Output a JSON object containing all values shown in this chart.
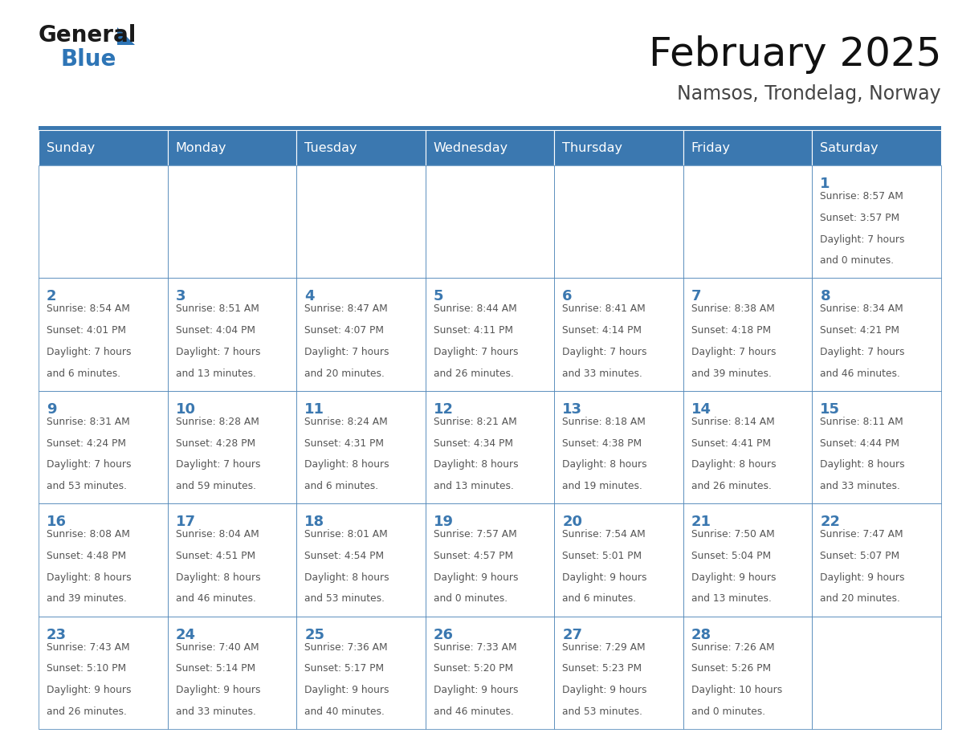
{
  "title": "February 2025",
  "subtitle": "Namsos, Trondelag, Norway",
  "header_bg": "#3b78b0",
  "header_text_color": "#ffffff",
  "border_color": "#3b78b0",
  "title_color": "#111111",
  "subtitle_color": "#444444",
  "day_number_color": "#3b78b0",
  "cell_text_color": "#555555",
  "logo_black": "#1a1a1a",
  "logo_blue": "#2e75b6",
  "day_headers": [
    "Sunday",
    "Monday",
    "Tuesday",
    "Wednesday",
    "Thursday",
    "Friday",
    "Saturday"
  ],
  "calendar": [
    [
      null,
      null,
      null,
      null,
      null,
      null,
      {
        "day": "1",
        "sunrise": "8:57 AM",
        "sunset": "3:57 PM",
        "daylight_l1": "7 hours",
        "daylight_l2": "and 0 minutes."
      }
    ],
    [
      {
        "day": "2",
        "sunrise": "8:54 AM",
        "sunset": "4:01 PM",
        "daylight_l1": "7 hours",
        "daylight_l2": "and 6 minutes."
      },
      {
        "day": "3",
        "sunrise": "8:51 AM",
        "sunset": "4:04 PM",
        "daylight_l1": "7 hours",
        "daylight_l2": "and 13 minutes."
      },
      {
        "day": "4",
        "sunrise": "8:47 AM",
        "sunset": "4:07 PM",
        "daylight_l1": "7 hours",
        "daylight_l2": "and 20 minutes."
      },
      {
        "day": "5",
        "sunrise": "8:44 AM",
        "sunset": "4:11 PM",
        "daylight_l1": "7 hours",
        "daylight_l2": "and 26 minutes."
      },
      {
        "day": "6",
        "sunrise": "8:41 AM",
        "sunset": "4:14 PM",
        "daylight_l1": "7 hours",
        "daylight_l2": "and 33 minutes."
      },
      {
        "day": "7",
        "sunrise": "8:38 AM",
        "sunset": "4:18 PM",
        "daylight_l1": "7 hours",
        "daylight_l2": "and 39 minutes."
      },
      {
        "day": "8",
        "sunrise": "8:34 AM",
        "sunset": "4:21 PM",
        "daylight_l1": "7 hours",
        "daylight_l2": "and 46 minutes."
      }
    ],
    [
      {
        "day": "9",
        "sunrise": "8:31 AM",
        "sunset": "4:24 PM",
        "daylight_l1": "7 hours",
        "daylight_l2": "and 53 minutes."
      },
      {
        "day": "10",
        "sunrise": "8:28 AM",
        "sunset": "4:28 PM",
        "daylight_l1": "7 hours",
        "daylight_l2": "and 59 minutes."
      },
      {
        "day": "11",
        "sunrise": "8:24 AM",
        "sunset": "4:31 PM",
        "daylight_l1": "8 hours",
        "daylight_l2": "and 6 minutes."
      },
      {
        "day": "12",
        "sunrise": "8:21 AM",
        "sunset": "4:34 PM",
        "daylight_l1": "8 hours",
        "daylight_l2": "and 13 minutes."
      },
      {
        "day": "13",
        "sunrise": "8:18 AM",
        "sunset": "4:38 PM",
        "daylight_l1": "8 hours",
        "daylight_l2": "and 19 minutes."
      },
      {
        "day": "14",
        "sunrise": "8:14 AM",
        "sunset": "4:41 PM",
        "daylight_l1": "8 hours",
        "daylight_l2": "and 26 minutes."
      },
      {
        "day": "15",
        "sunrise": "8:11 AM",
        "sunset": "4:44 PM",
        "daylight_l1": "8 hours",
        "daylight_l2": "and 33 minutes."
      }
    ],
    [
      {
        "day": "16",
        "sunrise": "8:08 AM",
        "sunset": "4:48 PM",
        "daylight_l1": "8 hours",
        "daylight_l2": "and 39 minutes."
      },
      {
        "day": "17",
        "sunrise": "8:04 AM",
        "sunset": "4:51 PM",
        "daylight_l1": "8 hours",
        "daylight_l2": "and 46 minutes."
      },
      {
        "day": "18",
        "sunrise": "8:01 AM",
        "sunset": "4:54 PM",
        "daylight_l1": "8 hours",
        "daylight_l2": "and 53 minutes."
      },
      {
        "day": "19",
        "sunrise": "7:57 AM",
        "sunset": "4:57 PM",
        "daylight_l1": "9 hours",
        "daylight_l2": "and 0 minutes."
      },
      {
        "day": "20",
        "sunrise": "7:54 AM",
        "sunset": "5:01 PM",
        "daylight_l1": "9 hours",
        "daylight_l2": "and 6 minutes."
      },
      {
        "day": "21",
        "sunrise": "7:50 AM",
        "sunset": "5:04 PM",
        "daylight_l1": "9 hours",
        "daylight_l2": "and 13 minutes."
      },
      {
        "day": "22",
        "sunrise": "7:47 AM",
        "sunset": "5:07 PM",
        "daylight_l1": "9 hours",
        "daylight_l2": "and 20 minutes."
      }
    ],
    [
      {
        "day": "23",
        "sunrise": "7:43 AM",
        "sunset": "5:10 PM",
        "daylight_l1": "9 hours",
        "daylight_l2": "and 26 minutes."
      },
      {
        "day": "24",
        "sunrise": "7:40 AM",
        "sunset": "5:14 PM",
        "daylight_l1": "9 hours",
        "daylight_l2": "and 33 minutes."
      },
      {
        "day": "25",
        "sunrise": "7:36 AM",
        "sunset": "5:17 PM",
        "daylight_l1": "9 hours",
        "daylight_l2": "and 40 minutes."
      },
      {
        "day": "26",
        "sunrise": "7:33 AM",
        "sunset": "5:20 PM",
        "daylight_l1": "9 hours",
        "daylight_l2": "and 46 minutes."
      },
      {
        "day": "27",
        "sunrise": "7:29 AM",
        "sunset": "5:23 PM",
        "daylight_l1": "9 hours",
        "daylight_l2": "and 53 minutes."
      },
      {
        "day": "28",
        "sunrise": "7:26 AM",
        "sunset": "5:26 PM",
        "daylight_l1": "10 hours",
        "daylight_l2": "and 0 minutes."
      },
      null
    ]
  ]
}
